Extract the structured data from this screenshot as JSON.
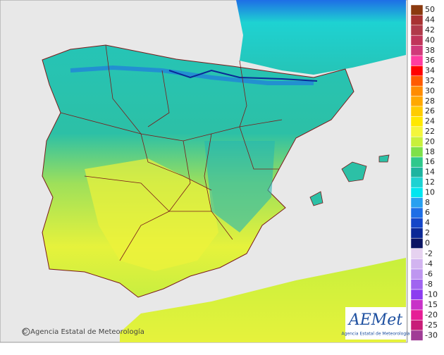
{
  "footer": {
    "credit": "© Agencia Estatal de Meteorología"
  },
  "logo": {
    "name": "AEMet",
    "subtitle": "Agencia Estatal de Meteorología"
  },
  "legend": {
    "upper": [
      {
        "value": 50,
        "color": "#8b3a0f"
      },
      {
        "value": 44,
        "color": "#a83232"
      },
      {
        "value": 42,
        "color": "#b03a4a"
      },
      {
        "value": 40,
        "color": "#c0355a"
      },
      {
        "value": 38,
        "color": "#d03a7a"
      },
      {
        "value": 36,
        "color": "#ff3da0"
      },
      {
        "value": 34,
        "color": "#ff0000"
      },
      {
        "value": 32,
        "color": "#ff5a00"
      },
      {
        "value": 30,
        "color": "#ff8c00"
      },
      {
        "value": 28,
        "color": "#ffa800"
      },
      {
        "value": 26,
        "color": "#ffcc00"
      },
      {
        "value": 24,
        "color": "#ffe800"
      },
      {
        "value": 22,
        "color": "#f4f63c"
      },
      {
        "value": 20,
        "color": "#c8f03c"
      },
      {
        "value": 18,
        "color": "#7ee04a"
      },
      {
        "value": 16,
        "color": "#2fc88c"
      },
      {
        "value": 14,
        "color": "#1eb4a0"
      },
      {
        "value": 12,
        "color": "#1ed2d2"
      },
      {
        "value": 10,
        "color": "#00e6f0"
      },
      {
        "value": 8,
        "color": "#28a0f0"
      },
      {
        "value": 6,
        "color": "#1e6ee6"
      },
      {
        "value": 4,
        "color": "#1446c8"
      },
      {
        "value": 2,
        "color": "#0a2896"
      },
      {
        "value": 0,
        "color": "#0a1464"
      }
    ],
    "lower": [
      {
        "value": -2,
        "color": "#e6d2f0"
      },
      {
        "value": -4,
        "color": "#d2b4f0"
      },
      {
        "value": -6,
        "color": "#be96f0"
      },
      {
        "value": -8,
        "color": "#a064f0"
      },
      {
        "value": -10,
        "color": "#8c3cf0"
      },
      {
        "value": -15,
        "color": "#c832c8"
      },
      {
        "value": -20,
        "color": "#e61e96"
      },
      {
        "value": -25,
        "color": "#c81e78"
      },
      {
        "value": -30,
        "color": "#a03c96"
      }
    ]
  }
}
